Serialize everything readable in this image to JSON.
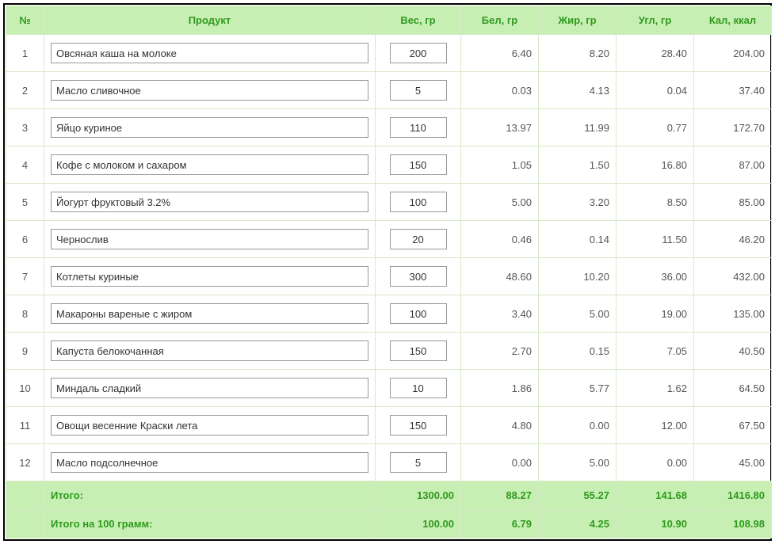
{
  "colors": {
    "header_bg": "#c8efb3",
    "header_text": "#2e9a1e",
    "border": "#d8e8c8",
    "total_bg": "#c8efb3",
    "total_text": "#2e9a1e",
    "body_text": "#555"
  },
  "table": {
    "columns": {
      "num": "№",
      "product": "Продукт",
      "weight": "Вес, гр",
      "protein": "Бел, гр",
      "fat": "Жир, гр",
      "carb": "Угл, гр",
      "kcal": "Кал, ккал"
    },
    "rows": [
      {
        "num": "1",
        "product": "Овсяная каша на молоке",
        "weight": "200",
        "protein": "6.40",
        "fat": "8.20",
        "carb": "28.40",
        "kcal": "204.00"
      },
      {
        "num": "2",
        "product": "Масло сливочное",
        "weight": "5",
        "protein": "0.03",
        "fat": "4.13",
        "carb": "0.04",
        "kcal": "37.40"
      },
      {
        "num": "3",
        "product": "Яйцо куриное",
        "weight": "110",
        "protein": "13.97",
        "fat": "11.99",
        "carb": "0.77",
        "kcal": "172.70"
      },
      {
        "num": "4",
        "product": "Кофе с молоком и сахаром",
        "weight": "150",
        "protein": "1.05",
        "fat": "1.50",
        "carb": "16.80",
        "kcal": "87.00"
      },
      {
        "num": "5",
        "product": "Йогурт фруктовый 3.2%",
        "weight": "100",
        "protein": "5.00",
        "fat": "3.20",
        "carb": "8.50",
        "kcal": "85.00"
      },
      {
        "num": "6",
        "product": "Чернослив",
        "weight": "20",
        "protein": "0.46",
        "fat": "0.14",
        "carb": "11.50",
        "kcal": "46.20"
      },
      {
        "num": "7",
        "product": "Котлеты куриные",
        "weight": "300",
        "protein": "48.60",
        "fat": "10.20",
        "carb": "36.00",
        "kcal": "432.00"
      },
      {
        "num": "8",
        "product": "Макароны вареные с жиром",
        "weight": "100",
        "protein": "3.40",
        "fat": "5.00",
        "carb": "19.00",
        "kcal": "135.00"
      },
      {
        "num": "9",
        "product": "Капуста белокочанная",
        "weight": "150",
        "protein": "2.70",
        "fat": "0.15",
        "carb": "7.05",
        "kcal": "40.50"
      },
      {
        "num": "10",
        "product": "Миндаль сладкий",
        "weight": "10",
        "protein": "1.86",
        "fat": "5.77",
        "carb": "1.62",
        "kcal": "64.50"
      },
      {
        "num": "11",
        "product": "Овощи весенние Краски лета",
        "weight": "150",
        "protein": "4.80",
        "fat": "0.00",
        "carb": "12.00",
        "kcal": "67.50"
      },
      {
        "num": "12",
        "product": "Масло подсолнечное",
        "weight": "5",
        "protein": "0.00",
        "fat": "5.00",
        "carb": "0.00",
        "kcal": "45.00"
      }
    ],
    "totals": {
      "label": "Итого:",
      "weight": "1300.00",
      "protein": "88.27",
      "fat": "55.27",
      "carb": "141.68",
      "kcal": "1416.80"
    },
    "totals_per_100": {
      "label": "Итого на 100 грамм:",
      "weight": "100.00",
      "protein": "6.79",
      "fat": "4.25",
      "carb": "10.90",
      "kcal": "108.98"
    }
  }
}
